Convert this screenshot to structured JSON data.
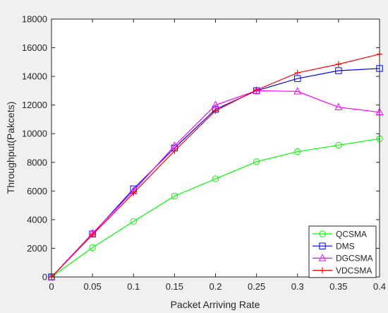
{
  "chart_data": {
    "type": "line",
    "title": "",
    "xlabel": "Packet Arriving Rate",
    "ylabel": "Throughput(Pakcets)",
    "xlim": [
      0,
      0.4
    ],
    "ylim": [
      0,
      18000
    ],
    "xticks": [
      "0",
      "0.05",
      "0.1",
      "0.15",
      "0.2",
      "0.25",
      "0.3",
      "0.35",
      "0.4"
    ],
    "yticks": [
      "0",
      "2000",
      "4000",
      "6000",
      "8000",
      "10000",
      "12000",
      "14000",
      "16000",
      "18000"
    ],
    "grid": false,
    "legend_position": "bottom-right",
    "x": [
      0,
      0.05,
      0.1,
      0.15,
      0.2,
      0.25,
      0.3,
      0.35,
      0.4
    ],
    "series": [
      {
        "name": "QCSMA",
        "color": "#00ff00",
        "marker": "circle",
        "values": [
          0,
          2050,
          3880,
          5650,
          6850,
          8050,
          8750,
          9200,
          9650
        ]
      },
      {
        "name": "DMS",
        "color": "#0000ff",
        "marker": "square",
        "values": [
          0,
          3000,
          6150,
          9000,
          11700,
          13000,
          13850,
          14400,
          14550
        ]
      },
      {
        "name": "DGCSMA",
        "color": "#ff00ff",
        "marker": "triangle",
        "values": [
          0,
          3050,
          6000,
          9150,
          12000,
          13000,
          12950,
          11850,
          11500
        ]
      },
      {
        "name": "VDCSMA",
        "color": "#ff0000",
        "marker": "plus",
        "values": [
          0,
          2950,
          5850,
          8800,
          11600,
          13050,
          14250,
          14850,
          15550
        ]
      }
    ]
  }
}
